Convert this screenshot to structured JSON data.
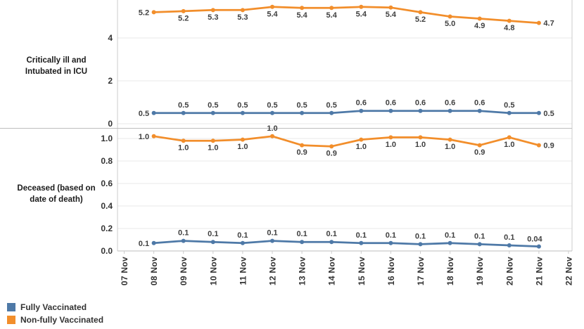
{
  "chart_data": {
    "type": "line",
    "layout": "two-row panel chart, shared date x-axis, grid on, legend bottom-left",
    "x_axis": {
      "categories": [
        "07 Nov",
        "08 Nov",
        "09 Nov",
        "10 Nov",
        "11 Nov",
        "12 Nov",
        "13 Nov",
        "14 Nov",
        "15 Nov",
        "16 Nov",
        "17 Nov",
        "18 Nov",
        "19 Nov",
        "20 Nov",
        "21 Nov",
        "22 Nov"
      ],
      "data_start_category": "08 Nov",
      "data_end_category": "21 Nov"
    },
    "panels": [
      {
        "type": "line",
        "panel_label": "Critically ill and\nIntubated in ICU",
        "y_axis": {
          "ticks": [
            {
              "value": 0,
              "label": "0"
            },
            {
              "value": 2,
              "label": "2"
            },
            {
              "value": 4,
              "label": "4"
            }
          ],
          "ylim": [
            0,
            5.8
          ]
        },
        "x_start_index": 1,
        "series": [
          {
            "name": "Non-fully Vaccinated",
            "color": "#f28e2b",
            "values": [
              5.2,
              5.25,
              5.3,
              5.3,
              5.45,
              5.4,
              5.4,
              5.45,
              5.42,
              5.2,
              5.0,
              4.9,
              4.8,
              4.7
            ],
            "labels": [
              "5.2",
              "5.2",
              "5.3",
              "5.3",
              "5.4",
              "5.4",
              "5.4",
              "5.4",
              "5.4",
              "5.2",
              "5.0",
              "4.9",
              "4.8",
              "4.7"
            ],
            "label_side": "below"
          },
          {
            "name": "Fully Vaccinated",
            "color": "#4e79a7",
            "values": [
              0.5,
              0.5,
              0.5,
              0.5,
              0.5,
              0.5,
              0.5,
              0.6,
              0.6,
              0.6,
              0.6,
              0.6,
              0.5,
              0.5
            ],
            "labels": [
              "0.5",
              "0.5",
              "0.5",
              "0.5",
              "0.5",
              "0.5",
              "0.5",
              "0.6",
              "0.6",
              "0.6",
              "0.6",
              "0.6",
              "0.5",
              "0.5"
            ],
            "label_side": "above"
          }
        ]
      },
      {
        "type": "line",
        "panel_label": "Deceased (based on\ndate of death)",
        "y_axis": {
          "ticks": [
            {
              "value": 0.0,
              "label": "0.0"
            },
            {
              "value": 0.2,
              "label": "0.2"
            },
            {
              "value": 0.4,
              "label": "0.4"
            },
            {
              "value": 0.6,
              "label": "0.6"
            },
            {
              "value": 0.8,
              "label": "0.8"
            },
            {
              "value": 1.0,
              "label": "1.0"
            }
          ],
          "ylim": [
            0,
            1.08
          ]
        },
        "x_start_index": 1,
        "series": [
          {
            "name": "Non-fully Vaccinated",
            "color": "#f28e2b",
            "values": [
              1.02,
              0.98,
              0.98,
              0.99,
              1.02,
              0.94,
              0.93,
              0.99,
              1.01,
              1.01,
              0.99,
              0.94,
              1.01,
              0.94
            ],
            "labels": [
              "1.0",
              "1.0",
              "1.0",
              "1.0",
              "1.0",
              "0.9",
              "0.9",
              "1.0",
              "1.0",
              "1.0",
              "1.0",
              "0.9",
              "1.0",
              "0.9"
            ],
            "label_side": "below",
            "label_above_indices": [
              4
            ]
          },
          {
            "name": "Fully Vaccinated",
            "color": "#4e79a7",
            "values": [
              0.07,
              0.09,
              0.08,
              0.07,
              0.09,
              0.08,
              0.08,
              0.07,
              0.07,
              0.06,
              0.07,
              0.06,
              0.05,
              0.04
            ],
            "labels": [
              "0.1",
              "0.1",
              "0.1",
              "0.1",
              "0.1",
              "0.1",
              "0.1",
              "0.1",
              "0.1",
              "0.1",
              "0.1",
              "0.1",
              "0.1",
              "0.04"
            ],
            "label_side": "above",
            "last_label": "above"
          }
        ]
      }
    ]
  },
  "legend": {
    "items": [
      {
        "label": "Fully Vaccinated",
        "color": "#4e79a7"
      },
      {
        "label": "Non-fully Vaccinated",
        "color": "#f28e2b"
      }
    ]
  },
  "colors": {
    "fully_vaccinated": "#4e79a7",
    "non_fully_vaccinated": "#f28e2b",
    "grid_line": "#e9e9e9",
    "axis_line": "#cccccc",
    "panel_divider": "#bdbdbd",
    "tick_text": "#333333",
    "data_label_text": "#3f3f3f"
  }
}
